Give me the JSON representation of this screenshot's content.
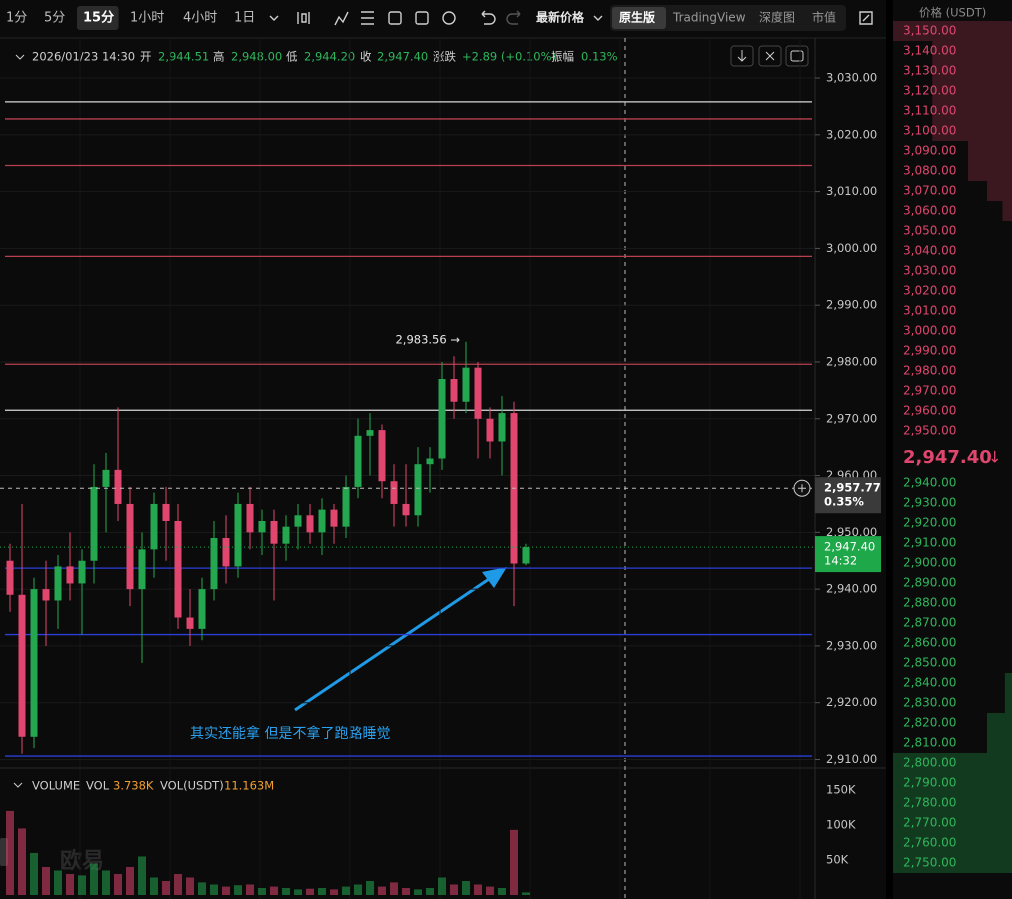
{
  "toolbar": {
    "intervals": [
      "1分",
      "5分",
      "15分",
      "1小时",
      "4小时",
      "1日"
    ],
    "active_interval": 2,
    "price_mode": "最新价格",
    "views": [
      "原生版",
      "TradingView",
      "深度图",
      "市值"
    ],
    "active_view": 0
  },
  "chart_data": {
    "type": "candlestick",
    "header": {
      "date": "2026/01/23 14:30",
      "fields": [
        {
          "label": "开",
          "value": "2,944.51"
        },
        {
          "label": "高",
          "value": "2,948.00"
        },
        {
          "label": "低",
          "value": "2,944.20"
        },
        {
          "label": "收",
          "value": "2,947.40"
        },
        {
          "label": "涨跌",
          "value": "+2.89 (+0.10%)"
        },
        {
          "label": "振幅",
          "value": "0.13%"
        }
      ]
    },
    "open": [
      2945,
      2939,
      2914,
      2940,
      2938,
      2944,
      2941,
      2945,
      2958,
      2961,
      2955,
      2940,
      2947,
      2955,
      2952,
      2935,
      2933,
      2940,
      2949,
      2944,
      2955,
      2950,
      2952,
      2948,
      2951,
      2953,
      2950,
      2954,
      2951,
      2958,
      2967,
      2968,
      2959,
      2955,
      2953,
      2962,
      2963,
      2977,
      2973,
      2979,
      2970,
      2966,
      2971,
      2944.51
    ],
    "high": [
      2948,
      2955,
      2942,
      2945,
      2946,
      2950,
      2947,
      2962,
      2964,
      2972,
      2958,
      2950,
      2957,
      2958,
      2955,
      2940,
      2942,
      2952,
      2953,
      2957,
      2958,
      2954,
      2954,
      2953,
      2955,
      2955,
      2956,
      2955,
      2960,
      2970,
      2971,
      2969,
      2962,
      2962,
      2965,
      2965,
      2980,
      2981,
      2983.56,
      2980,
      2972,
      2974,
      2973,
      2948
    ],
    "low": [
      2936,
      2911,
      2912,
      2930,
      2933,
      2938,
      2932,
      2941,
      2950,
      2952,
      2937,
      2927,
      2942,
      2945,
      2933,
      2930,
      2931,
      2938,
      2941,
      2942,
      2947,
      2946,
      2938,
      2945,
      2947,
      2948,
      2946,
      2948,
      2949,
      2956,
      2960,
      2956,
      2951,
      2951,
      2951,
      2957,
      2961,
      2970,
      2971,
      2963,
      2963,
      2960,
      2937,
      2944.2
    ],
    "close": [
      2939,
      2914,
      2940,
      2938,
      2944,
      2941,
      2945,
      2958,
      2961,
      2955,
      2940,
      2947,
      2955,
      2952,
      2935,
      2933,
      2940,
      2949,
      2944,
      2955,
      2950,
      2952,
      2948,
      2951,
      2953,
      2950,
      2954,
      2951,
      2958,
      2967,
      2968,
      2959,
      2955,
      2953,
      2962,
      2963,
      2977,
      2973,
      2979,
      2970,
      2966,
      2971,
      2944.51,
      2947.4
    ],
    "up_color": "#25a750",
    "down_color": "#e0466e",
    "ylim": [
      2908.5,
      3036.7
    ],
    "yticks": [
      {
        "value": 2910,
        "label": "2,910.00"
      },
      {
        "value": 2920,
        "label": "2,920.00"
      },
      {
        "value": 2930,
        "label": "2,930.00"
      },
      {
        "value": 2940,
        "label": "2,940.00"
      },
      {
        "value": 2950,
        "label": "2,950.00"
      },
      {
        "value": 2960,
        "label": "2,960.00"
      },
      {
        "value": 2970,
        "label": "2,970.00"
      },
      {
        "value": 2980,
        "label": "2,980.00"
      },
      {
        "value": 2990,
        "label": "2,990.00"
      },
      {
        "value": 3000,
        "label": "3,000.00"
      },
      {
        "value": 3010,
        "label": "3,010.00"
      },
      {
        "value": 3020,
        "label": "3,020.00"
      },
      {
        "value": 3030,
        "label": "3,030.00"
      }
    ],
    "high_marker": {
      "value": 2983.56,
      "label": "2,983.56 →"
    },
    "crosshair": {
      "value": 2957.77,
      "label": "2,957.77",
      "change": "0.35%"
    },
    "last_price": {
      "value": 2947.4,
      "label": "2,947.40",
      "countdown": "14:32"
    },
    "drawings": [
      {
        "value": 3025.8,
        "color": "#d8d8d8"
      },
      {
        "value": 3022.8,
        "color": "#b8404f"
      },
      {
        "value": 3014.6,
        "color": "#b8404f"
      },
      {
        "value": 2998.6,
        "color": "#b8404f"
      },
      {
        "value": 2979.6,
        "color": "#b8404f"
      },
      {
        "value": 2971.5,
        "color": "#d8d8d8"
      },
      {
        "value": 2943.7,
        "color": "#2b3fd8"
      },
      {
        "value": 2932.0,
        "color": "#2b3fd8"
      },
      {
        "value": 2910.6,
        "color": "#2b3fd8"
      }
    ],
    "annotation": "其实还能拿 但是不拿了跑路睡觉",
    "watermark": "欧易",
    "volume": {
      "title": "VOLUME",
      "vol_label": "VOL",
      "vol_value": "3.738K",
      "usdt_label": "VOL(USDT)",
      "usdt_value": "11.163M",
      "values": [
        120,
        95,
        60,
        40,
        35,
        30,
        28,
        45,
        35,
        30,
        40,
        55,
        25,
        20,
        30,
        25,
        18,
        15,
        12,
        14,
        15,
        10,
        12,
        10,
        8,
        9,
        10,
        8,
        12,
        15,
        20,
        12,
        18,
        10,
        8,
        10,
        25,
        15,
        20,
        15,
        12,
        10,
        93,
        3.738
      ],
      "ylim": [
        0,
        167
      ],
      "yticks": [
        {
          "value": 50,
          "label": "50K"
        },
        {
          "value": 100,
          "label": "100K"
        },
        {
          "value": 150,
          "label": "150K"
        }
      ]
    }
  },
  "order_book": {
    "title": "价格 (USDT)",
    "asks": [
      {
        "price": "3,150.00",
        "depth": 100
      },
      {
        "price": "3,140.00",
        "depth": 67
      },
      {
        "price": "3,130.00",
        "depth": 67
      },
      {
        "price": "3,120.00",
        "depth": 67
      },
      {
        "price": "3,110.00",
        "depth": 67
      },
      {
        "price": "3,100.00",
        "depth": 67
      },
      {
        "price": "3,090.00",
        "depth": 37
      },
      {
        "price": "3,080.00",
        "depth": 37
      },
      {
        "price": "3,070.00",
        "depth": 21
      },
      {
        "price": "3,060.00",
        "depth": 8
      },
      {
        "price": "3,050.00",
        "depth": 0
      },
      {
        "price": "3,040.00",
        "depth": 0
      },
      {
        "price": "3,030.00",
        "depth": 0
      },
      {
        "price": "3,020.00",
        "depth": 0
      },
      {
        "price": "3,010.00",
        "depth": 0
      },
      {
        "price": "3,000.00",
        "depth": 0
      },
      {
        "price": "2,990.00",
        "depth": 0
      },
      {
        "price": "2,980.00",
        "depth": 0
      },
      {
        "price": "2,970.00",
        "depth": 0
      },
      {
        "price": "2,960.00",
        "depth": 0
      },
      {
        "price": "2,950.00",
        "depth": 0
      }
    ],
    "current": {
      "price": "2,947.40",
      "arrow": "↓"
    },
    "bids": [
      {
        "price": "2,940.00",
        "depth": 0
      },
      {
        "price": "2,930.00",
        "depth": 0
      },
      {
        "price": "2,920.00",
        "depth": 0
      },
      {
        "price": "2,910.00",
        "depth": 0
      },
      {
        "price": "2,900.00",
        "depth": 0
      },
      {
        "price": "2,890.00",
        "depth": 0
      },
      {
        "price": "2,880.00",
        "depth": 0
      },
      {
        "price": "2,870.00",
        "depth": 0
      },
      {
        "price": "2,860.00",
        "depth": 0
      },
      {
        "price": "2,850.00",
        "depth": 0
      },
      {
        "price": "2,840.00",
        "depth": 6
      },
      {
        "price": "2,830.00",
        "depth": 6
      },
      {
        "price": "2,820.00",
        "depth": 21
      },
      {
        "price": "2,810.00",
        "depth": 21
      },
      {
        "price": "2,800.00",
        "depth": 100
      },
      {
        "price": "2,790.00",
        "depth": 100
      },
      {
        "price": "2,780.00",
        "depth": 100
      },
      {
        "price": "2,770.00",
        "depth": 100
      },
      {
        "price": "2,760.00",
        "depth": 100
      },
      {
        "price": "2,750.00",
        "depth": 100
      }
    ]
  }
}
